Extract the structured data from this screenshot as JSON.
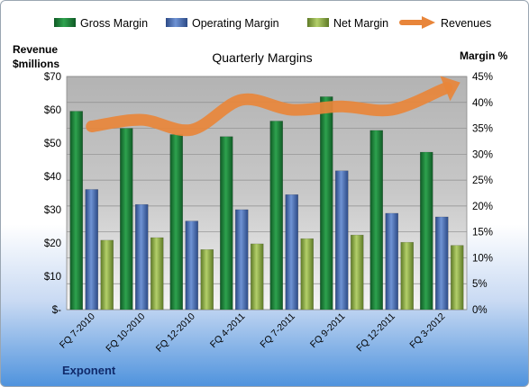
{
  "chart_data": {
    "type": "bar",
    "title": "Quarterly Margins",
    "categories": [
      "FQ 7-2010",
      "FQ 10-2010",
      "FQ 12-2010",
      "FQ 4-2011",
      "FQ 7-2011",
      "FQ 9-2011",
      "FQ 12-2011",
      "FQ 3-2012"
    ],
    "series": [
      {
        "name": "Gross Margin",
        "type": "bar",
        "axis": "right",
        "color": "#1e7d3c",
        "values": [
          38.3,
          35.0,
          33.8,
          33.4,
          36.4,
          41.1,
          34.6,
          30.4
        ]
      },
      {
        "name": "Operating Margin",
        "type": "bar",
        "axis": "right",
        "color": "#4a6fb5",
        "values": [
          23.2,
          20.3,
          17.1,
          19.3,
          22.2,
          26.8,
          18.6,
          17.9
        ]
      },
      {
        "name": "Net Margin",
        "type": "bar",
        "axis": "right",
        "color": "#8fb04a",
        "values": [
          13.4,
          13.9,
          11.6,
          12.7,
          13.7,
          14.4,
          13.0,
          12.4
        ]
      },
      {
        "name": "Revenues",
        "type": "line",
        "axis": "left",
        "color": "#e8853a",
        "values": [
          55,
          57,
          54,
          63,
          60,
          61,
          60,
          66
        ]
      }
    ],
    "y_left": {
      "label_line1": "Revenue",
      "label_line2": "$millions",
      "range": [
        0,
        70
      ],
      "ticks": [
        "$-",
        "$10",
        "$20",
        "$30",
        "$40",
        "$50",
        "$60",
        "$70"
      ]
    },
    "y_right": {
      "label": "Margin %",
      "range": [
        0,
        45
      ],
      "ticks": [
        "0%",
        "5%",
        "10%",
        "15%",
        "20%",
        "25%",
        "30%",
        "35%",
        "40%",
        "45%"
      ]
    },
    "grid": true,
    "legend_position": "top"
  },
  "footer": {
    "brand": "Exponent"
  }
}
